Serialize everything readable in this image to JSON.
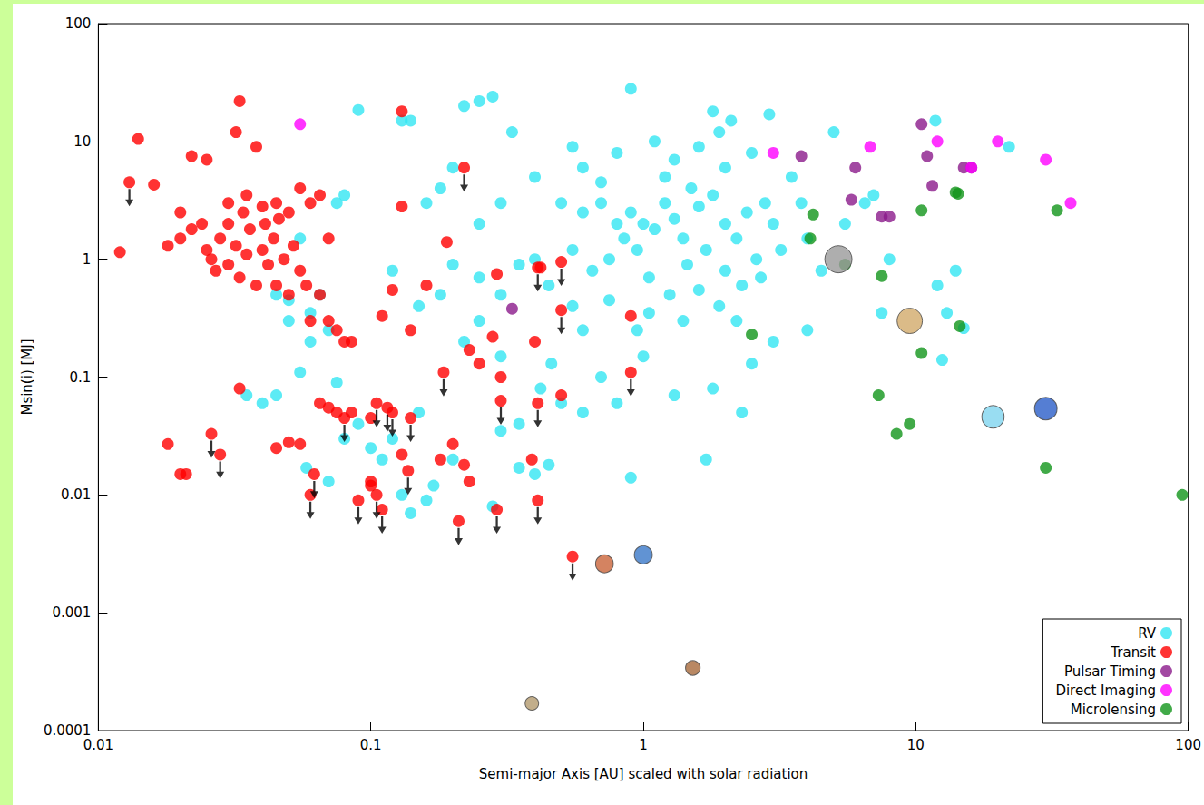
{
  "chart_data": {
    "type": "scatter",
    "x_label": "Semi-major Axis [AU] scaled with solar radiation",
    "y_label": "Msin(i) [MJ]",
    "log": true,
    "grid": false,
    "legend": "lower right",
    "xlim": [
      0.01,
      100
    ],
    "xticks": [
      0.01,
      0.1,
      1,
      10,
      100
    ],
    "ylim": [
      0.0001,
      100
    ],
    "yticks": [
      0.0001,
      0.001,
      0.01,
      0.1,
      1,
      10,
      100
    ],
    "series": [
      {
        "name": "RV",
        "color": "#33e6f2",
        "marker": "circle",
        "x": [
          0.09,
          0.22,
          0.25,
          0.28,
          0.13,
          0.14,
          0.33,
          0.9,
          1.8,
          2.1,
          2.9,
          5.0,
          11.8,
          22,
          6.5,
          7,
          5.5,
          0.5,
          0.6,
          0.7,
          0.8,
          0.9,
          1.0,
          1.1,
          1.2,
          1.3,
          1.4,
          1.5,
          1.6,
          1.7,
          1.8,
          2.0,
          2.2,
          2.4,
          2.6,
          2.8,
          3.0,
          3.2,
          3.5,
          0.95,
          0.85,
          0.75,
          0.65,
          0.55,
          1.05,
          1.25,
          1.45,
          2.3,
          2.7,
          1.9,
          0.45,
          0.4,
          0.35,
          0.3,
          0.25,
          0.2,
          0.18,
          0.15,
          0.12,
          0.6,
          0.8,
          1.1,
          1.3,
          1.6,
          2.0,
          2.5,
          1.9,
          0.4,
          0.3,
          0.25,
          0.2,
          0.18,
          0.16,
          0.7,
          1.2,
          0.55,
          4.0,
          4.5,
          3.8,
          0.05,
          0.06,
          0.07,
          0.045,
          0.035,
          0.04,
          0.055,
          0.08,
          0.09,
          0.1,
          0.11,
          0.12,
          0.15,
          0.17,
          0.2,
          0.22,
          0.25,
          0.3,
          0.35,
          0.4,
          0.45,
          0.5,
          0.6,
          0.7,
          0.8,
          0.9,
          0.95,
          1.3,
          1.7,
          1.8,
          2.3,
          0.13,
          0.16,
          0.058,
          0.07,
          0.075,
          0.06,
          0.065,
          0.05,
          0.045,
          0.055,
          0.075,
          0.08,
          12,
          13,
          12.5,
          8,
          7.5,
          2.5,
          2.2,
          3,
          4,
          1.0,
          0.28,
          0.14,
          0.3,
          0.35,
          0.42,
          0.46,
          0.6,
          0.55,
          0.75,
          1.05,
          1.4,
          1.6,
          2.0,
          14,
          15
        ],
        "values": [
          18.5,
          20,
          22,
          24,
          15,
          15,
          12,
          28,
          18,
          15,
          17,
          12,
          15,
          9,
          3,
          3.5,
          2,
          3,
          2.5,
          3,
          2,
          2.5,
          2,
          1.8,
          3,
          2.2,
          1.5,
          4,
          2.8,
          1.2,
          3.5,
          2,
          1.5,
          2.5,
          1,
          3,
          2,
          1.2,
          5,
          1.2,
          1.5,
          1.0,
          0.8,
          1.2,
          0.7,
          0.5,
          0.9,
          0.6,
          0.7,
          0.4,
          0.6,
          1.0,
          0.9,
          0.5,
          0.7,
          0.9,
          0.5,
          0.4,
          0.8,
          6,
          8,
          10,
          7,
          9,
          6,
          8,
          12,
          5,
          3,
          2,
          6,
          4,
          3,
          4.5,
          5,
          9,
          1.5,
          0.8,
          3,
          0.3,
          0.35,
          0.25,
          0.07,
          0.07,
          0.06,
          0.11,
          0.03,
          0.04,
          0.025,
          0.02,
          0.03,
          0.05,
          0.012,
          0.02,
          0.2,
          0.3,
          0.15,
          0.017,
          0.015,
          0.018,
          0.06,
          0.05,
          0.1,
          0.06,
          0.014,
          0.25,
          0.07,
          0.02,
          0.08,
          0.05,
          0.01,
          0.009,
          0.017,
          0.013,
          0.09,
          0.2,
          0.5,
          0.45,
          0.5,
          1.5,
          3,
          3.5,
          0.6,
          0.35,
          0.14,
          1,
          0.35,
          0.13,
          0.3,
          0.2,
          0.25,
          0.15,
          0.008,
          0.007,
          0.035,
          0.04,
          0.08,
          0.13,
          0.25,
          0.4,
          0.45,
          0.35,
          0.3,
          0.55,
          0.8,
          0.8,
          0.26
        ]
      },
      {
        "name": "Transit",
        "color": "#ff0000",
        "marker": "circle",
        "x": [
          0.012,
          0.014,
          0.016,
          0.013,
          0.033,
          0.032,
          0.038,
          0.02,
          0.022,
          0.025,
          0.03,
          0.035,
          0.04,
          0.045,
          0.05,
          0.055,
          0.06,
          0.018,
          0.02,
          0.022,
          0.024,
          0.025,
          0.026,
          0.028,
          0.03,
          0.03,
          0.032,
          0.033,
          0.035,
          0.036,
          0.038,
          0.04,
          0.042,
          0.044,
          0.045,
          0.048,
          0.05,
          0.052,
          0.055,
          0.058,
          0.06,
          0.065,
          0.07,
          0.075,
          0.08,
          0.085,
          0.07,
          0.065,
          0.027,
          0.034,
          0.041,
          0.046,
          0.13,
          0.13,
          0.16,
          0.19,
          0.29,
          0.42,
          0.9,
          0.11,
          0.12,
          0.14,
          0.23,
          0.25,
          0.28,
          0.3,
          0.4,
          0.033,
          0.018,
          0.02,
          0.021,
          0.045,
          0.05,
          0.055,
          0.065,
          0.07,
          0.075,
          0.085,
          0.1,
          0.13,
          0.18,
          0.2,
          0.22,
          0.23,
          0.39,
          0.5,
          0.1,
          0.1,
          0.22,
          0.5,
          0.5,
          0.41,
          0.185,
          0.9,
          0.3,
          0.41,
          0.14,
          0.12,
          0.105,
          0.08,
          0.026,
          0.028,
          0.062,
          0.06,
          0.09,
          0.105,
          0.11,
          0.137,
          0.21,
          0.29,
          0.41,
          0.55,
          0.115
        ],
        "values": [
          1.15,
          10.5,
          4.3,
          4.5,
          22,
          12,
          9,
          2.5,
          7.5,
          7,
          3,
          3.5,
          2.8,
          3,
          2.5,
          4,
          3,
          1.3,
          1.5,
          1.8,
          2,
          1.2,
          1,
          1.5,
          0.9,
          2,
          1.3,
          0.7,
          1.1,
          1.8,
          0.6,
          1.2,
          0.9,
          1.5,
          0.6,
          1,
          0.5,
          1.3,
          0.8,
          0.6,
          0.3,
          0.5,
          0.3,
          0.25,
          0.2,
          0.2,
          1.5,
          3.5,
          0.8,
          2.5,
          2,
          2.2,
          18,
          2.8,
          0.6,
          1.4,
          0.75,
          0.85,
          0.33,
          0.33,
          0.55,
          0.25,
          0.17,
          0.13,
          0.22,
          0.1,
          0.2,
          0.08,
          0.027,
          0.015,
          0.015,
          0.025,
          0.028,
          0.027,
          0.06,
          0.055,
          0.05,
          0.05,
          0.045,
          0.022,
          0.02,
          0.027,
          0.018,
          0.013,
          0.02,
          0.07,
          0.013,
          0.012,
          6,
          0.95,
          0.37,
          0.85,
          0.11,
          0.11,
          0.063,
          0.06,
          0.045,
          0.05,
          0.06,
          0.045,
          0.033,
          0.022,
          0.015,
          0.01,
          0.009,
          0.01,
          0.0075,
          0.016,
          0.006,
          0.0075,
          0.009,
          0.003,
          0.055
        ],
        "upper_limit": [
          false,
          false,
          false,
          true,
          false,
          false,
          false,
          false,
          false,
          false,
          false,
          false,
          false,
          false,
          false,
          false,
          false,
          false,
          false,
          false,
          false,
          false,
          false,
          false,
          false,
          false,
          false,
          false,
          false,
          false,
          false,
          false,
          false,
          false,
          false,
          false,
          false,
          false,
          false,
          false,
          false,
          false,
          false,
          false,
          false,
          false,
          false,
          false,
          false,
          false,
          false,
          false,
          false,
          false,
          false,
          false,
          false,
          false,
          false,
          false,
          false,
          false,
          false,
          false,
          false,
          false,
          false,
          false,
          false,
          false,
          false,
          false,
          false,
          false,
          false,
          false,
          false,
          false,
          false,
          false,
          false,
          false,
          false,
          false,
          false,
          false,
          false,
          false,
          true,
          true,
          true,
          true,
          true,
          true,
          true,
          true,
          true,
          true,
          true,
          true,
          true,
          true,
          true,
          true,
          true,
          true,
          true,
          true,
          true,
          true,
          true,
          true,
          true
        ]
      },
      {
        "name": "Pulsar Timing",
        "color": "#8b1a8b",
        "marker": "circle",
        "x": [
          0.33,
          3.8,
          5.8,
          6,
          7.5,
          8,
          10.5,
          11,
          11.5,
          15,
          16
        ],
        "values": [
          0.38,
          7.5,
          3.2,
          6,
          2.3,
          2.3,
          14,
          7.5,
          4.2,
          6,
          6
        ]
      },
      {
        "name": "Direct Imaging",
        "color": "#ff00ff",
        "marker": "circle",
        "x": [
          0.055,
          3,
          6.8,
          12,
          16,
          20,
          30,
          37
        ],
        "values": [
          14,
          8,
          9,
          10,
          6,
          10,
          7,
          3
        ]
      },
      {
        "name": "Microlensing",
        "color": "#12951a",
        "marker": "circle",
        "x": [
          4.2,
          4.1,
          5.5,
          7.5,
          10.5,
          14,
          14.3,
          33,
          2.5,
          10.5,
          14.5,
          7.3,
          8.5,
          9.5,
          30,
          95
        ],
        "values": [
          2.4,
          1.5,
          0.9,
          0.72,
          2.6,
          3.7,
          3.6,
          2.6,
          0.23,
          0.16,
          0.27,
          0.07,
          0.033,
          0.04,
          0.017,
          0.01
        ]
      }
    ],
    "solar_system": {
      "x": [
        0.39,
        0.72,
        1.0,
        1.52,
        5.2,
        9.5,
        19.2,
        30
      ],
      "values": [
        0.00017,
        0.0026,
        0.0031,
        0.00034,
        1.0,
        0.3,
        0.046,
        0.054
      ],
      "colors": [
        "#b39a6e",
        "#c9643a",
        "#3a78c8",
        "#a86a3c",
        "#9a9a9a",
        "#d2aa6a",
        "#7fd4ef",
        "#2a5ec8"
      ]
    }
  }
}
